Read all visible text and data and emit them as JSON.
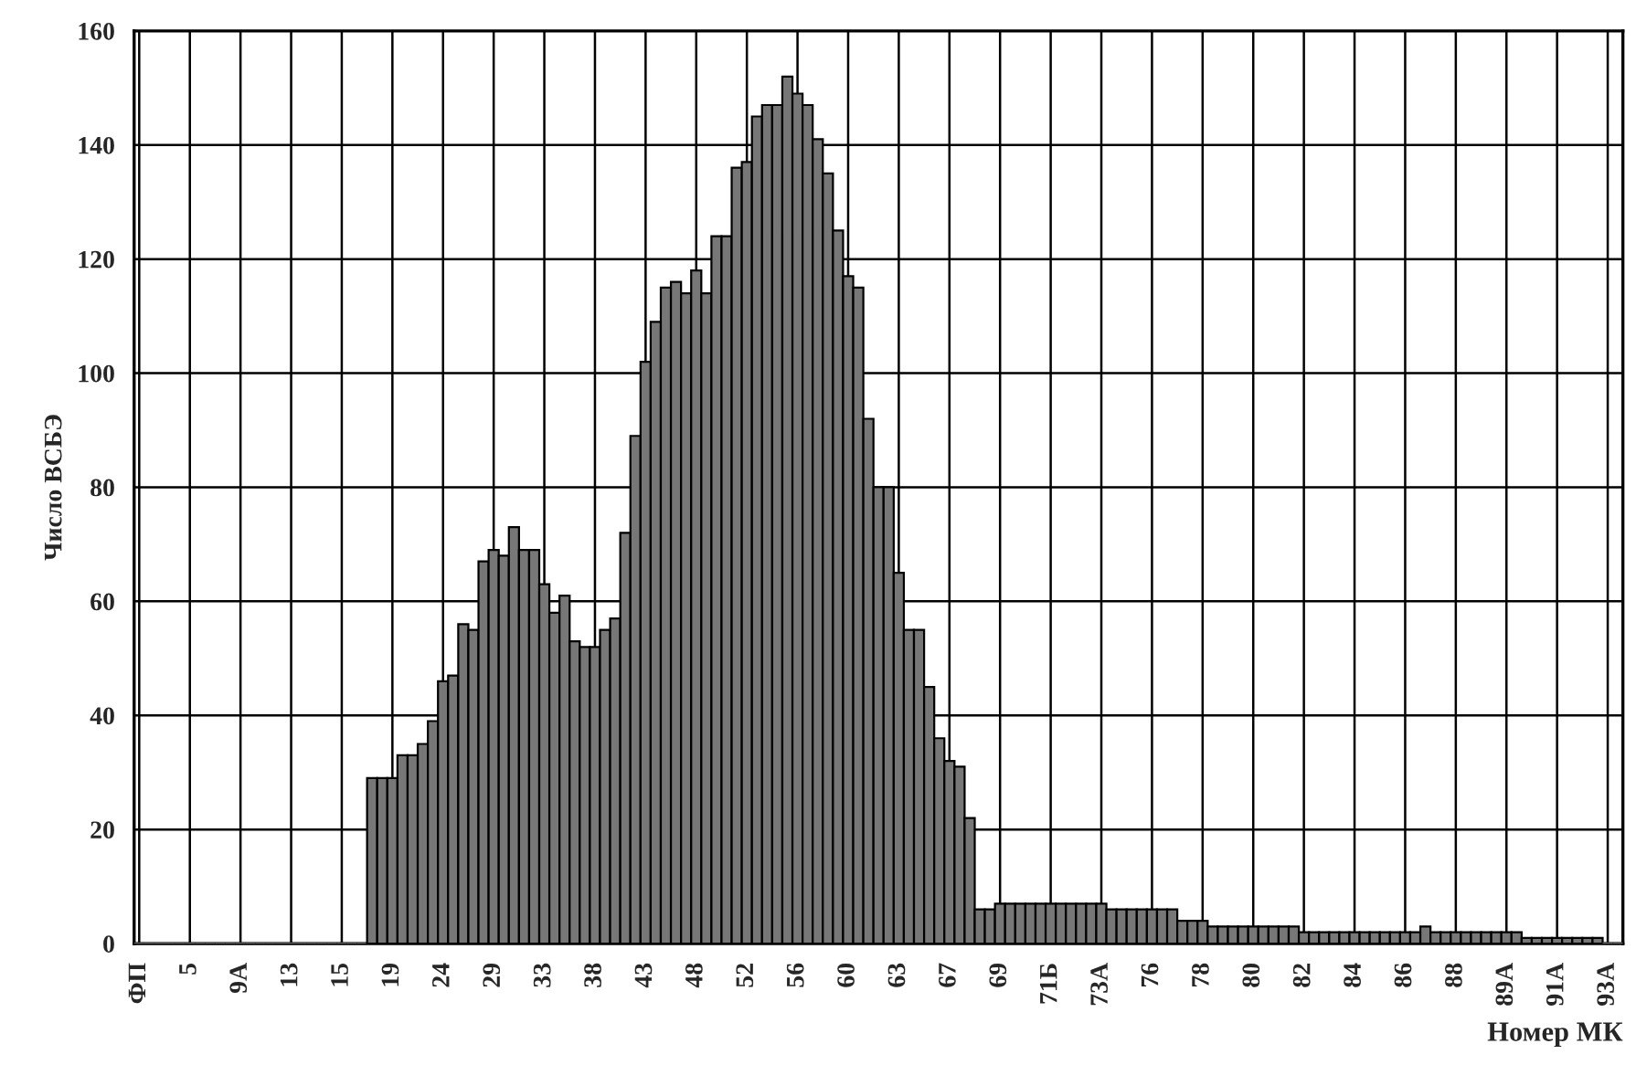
{
  "chart_data": {
    "type": "bar",
    "xlabel": "Номер МК",
    "ylabel": "Число ВСБЭ",
    "categories": [
      "ФП",
      null,
      null,
      null,
      null,
      "5",
      null,
      null,
      null,
      null,
      "9А",
      null,
      null,
      null,
      null,
      "13",
      null,
      null,
      null,
      null,
      "15",
      null,
      null,
      null,
      null,
      "19",
      null,
      null,
      null,
      null,
      "24",
      null,
      null,
      null,
      null,
      "29",
      null,
      null,
      null,
      null,
      "33",
      null,
      null,
      null,
      null,
      "38",
      null,
      null,
      null,
      null,
      "43",
      null,
      null,
      null,
      null,
      "48",
      null,
      null,
      null,
      null,
      "52",
      null,
      null,
      null,
      null,
      "56",
      null,
      null,
      null,
      null,
      "60",
      null,
      null,
      null,
      null,
      "63",
      null,
      null,
      null,
      null,
      "67",
      null,
      null,
      null,
      null,
      "69",
      null,
      null,
      null,
      null,
      "71Б",
      null,
      null,
      null,
      null,
      "73А",
      null,
      null,
      null,
      null,
      "76",
      null,
      null,
      null,
      null,
      "78",
      null,
      null,
      null,
      null,
      "80",
      null,
      null,
      null,
      null,
      "82",
      null,
      null,
      null,
      null,
      "84",
      null,
      null,
      null,
      null,
      "86",
      null,
      null,
      null,
      null,
      "88",
      null,
      null,
      null,
      null,
      "89А",
      null,
      null,
      null,
      null,
      "91А",
      null,
      null,
      null,
      null,
      "93А",
      null
    ],
    "values": [
      0,
      0,
      0,
      0,
      0,
      0,
      0,
      0,
      0,
      0,
      0,
      0,
      0,
      0,
      0,
      0,
      0,
      0,
      0,
      0,
      0,
      0,
      0,
      29,
      29,
      29,
      33,
      33,
      35,
      39,
      46,
      47,
      56,
      55,
      67,
      69,
      68,
      73,
      69,
      69,
      63,
      58,
      61,
      53,
      52,
      52,
      55,
      57,
      72,
      89,
      102,
      109,
      115,
      116,
      114,
      118,
      114,
      124,
      124,
      136,
      137,
      145,
      147,
      147,
      152,
      149,
      147,
      141,
      135,
      125,
      117,
      115,
      92,
      80,
      80,
      65,
      55,
      55,
      45,
      36,
      32,
      31,
      22,
      6,
      6,
      7,
      7,
      7,
      7,
      7,
      7,
      7,
      7,
      7,
      7,
      7,
      6,
      6,
      6,
      6,
      6,
      6,
      6,
      4,
      4,
      4,
      3,
      3,
      3,
      3,
      3,
      3,
      3,
      3,
      3,
      2,
      2,
      2,
      2,
      2,
      2,
      2,
      2,
      2,
      2,
      2,
      2,
      3,
      2,
      2,
      2,
      2,
      2,
      2,
      2,
      2,
      2,
      1,
      1,
      1,
      1,
      1,
      1,
      1,
      1,
      0,
      0
    ],
    "color": "#777777",
    "ylim": [
      0,
      160
    ],
    "yticks": [
      0,
      20,
      40,
      60,
      80,
      100,
      120,
      140,
      160
    ],
    "grid": true,
    "legend": false
  }
}
